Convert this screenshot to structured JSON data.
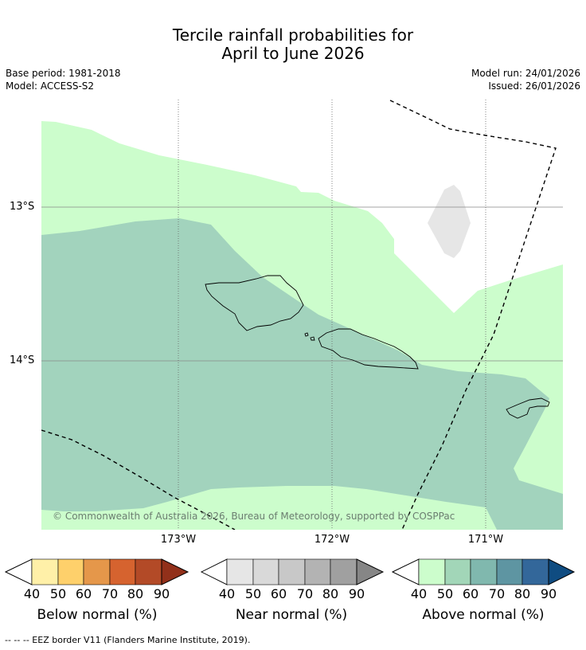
{
  "title": {
    "line1": "Tercile rainfall probabilities for",
    "line2": "April to June 2026"
  },
  "meta": {
    "base_period": "Base period: 1981-2018",
    "model": "Model: ACCESS-S2",
    "model_run": "Model run: 24/01/2026",
    "issued": "Issued: 26/01/2026"
  },
  "map": {
    "lat_labels": [
      "13°S",
      "14°S"
    ],
    "lon_labels": [
      "173°W",
      "172°W",
      "171°W"
    ],
    "copyright": "© Commonwealth of Australia 2026, Bureau of Meteorology, supported by COSPPac"
  },
  "colorbars": [
    {
      "label": "Below normal (%)",
      "ticks": [
        "40",
        "50",
        "60",
        "70",
        "80",
        "90"
      ],
      "colors": [
        "#fff0a8",
        "#fed06b",
        "#e5974a",
        "#d6632f",
        "#b34a27",
        "#92301a"
      ]
    },
    {
      "label": "Near normal (%)",
      "ticks": [
        "40",
        "50",
        "60",
        "70",
        "80",
        "90"
      ],
      "colors": [
        "#e6e6e6",
        "#d9d9d9",
        "#c8c8c8",
        "#b3b3b3",
        "#a0a0a0",
        "#868686"
      ]
    },
    {
      "label": "Above normal (%)",
      "ticks": [
        "40",
        "50",
        "60",
        "70",
        "80",
        "90"
      ],
      "colors": [
        "#ccfdcc",
        "#a2d6b8",
        "#80b8ae",
        "#5e95a2",
        "#33679a",
        "#0f4c81"
      ]
    }
  ],
  "footer": "--  --  -- EEZ border V11 (Flanders Marine Institute, 2019)."
}
